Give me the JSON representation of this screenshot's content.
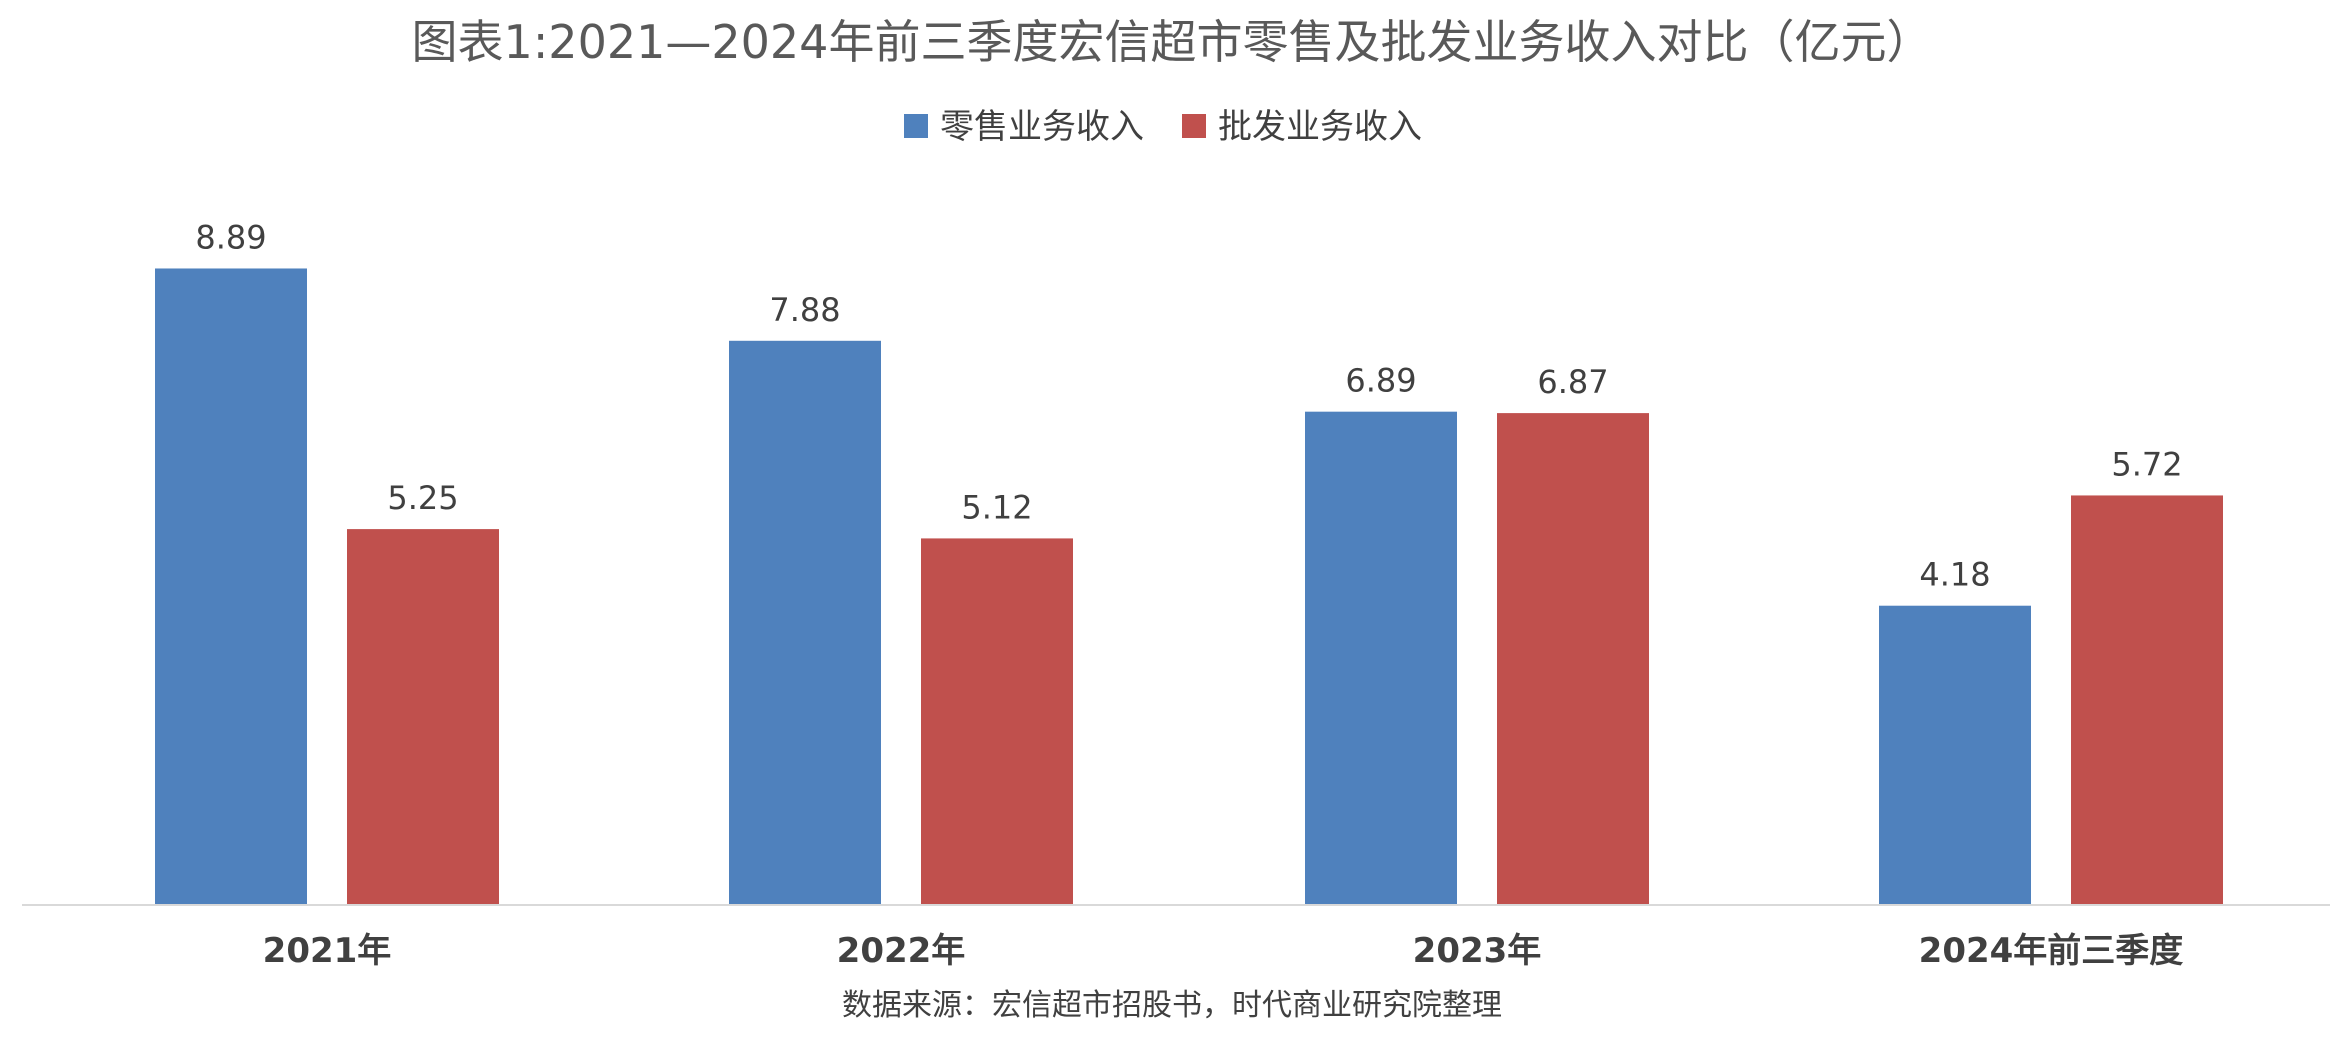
{
  "chart_data": {
    "type": "bar",
    "title": "图表1:2021—2024年前三季度宏信超市零售及批发业务收入对比（亿元）",
    "categories": [
      "2021年",
      "2022年",
      "2023年",
      "2024年前三季度"
    ],
    "series": [
      {
        "name": "零售业务收入",
        "color": "#4F81BD",
        "values": [
          8.89,
          7.88,
          6.89,
          4.18
        ]
      },
      {
        "name": "批发业务收入",
        "color": "#C0504D",
        "values": [
          5.25,
          5.12,
          6.87,
          5.72
        ]
      }
    ],
    "ylim": [
      0,
      10
    ],
    "grid": false,
    "legend_position": "top",
    "source": "数据来源：宏信超市招股书，时代商业研究院整理"
  }
}
